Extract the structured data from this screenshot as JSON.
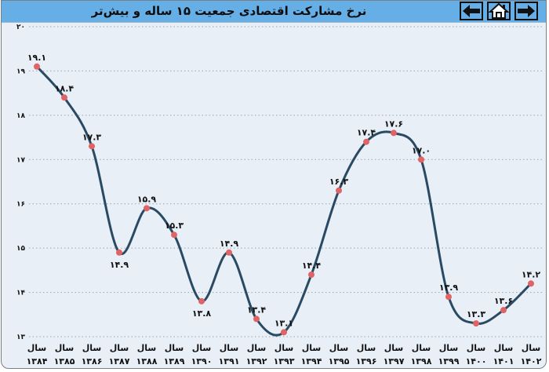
{
  "header": {
    "title": "نرخ مشارکت اقتصادی جمعیت ۱۵ ساله و بیش‌تر",
    "nav": {
      "back_icon": "arrow-left-icon",
      "home_icon": "home-icon",
      "forward_icon": "arrow-right-icon"
    }
  },
  "colors": {
    "title_bar": "#66aee6",
    "plot_bg": "#e8eff7",
    "line": "#2a4a63",
    "marker": "#e06466"
  },
  "chart_data": {
    "type": "line",
    "title": "نرخ مشارکت اقتصادی جمعیت ۱۵ ساله و بیش‌تر",
    "xlabel": "",
    "ylabel": "",
    "ylim": [
      13,
      20
    ],
    "yticks": [
      20,
      19,
      18,
      17,
      16,
      15,
      14,
      13
    ],
    "ytick_labels": [
      "۲۰",
      "۱۹",
      "۱۸",
      "۱۷",
      "۱۶",
      "۱۵",
      "۱۴",
      "۱۳"
    ],
    "grid": "horizontal-dotted",
    "legend": "none",
    "categories": [
      "سال ۱۳۸۴",
      "سال ۱۳۸۵",
      "سال ۱۳۸۶",
      "سال ۱۳۸۷",
      "سال ۱۳۸۸",
      "سال ۱۳۸۹",
      "سال ۱۳۹۰",
      "سال ۱۳۹۱",
      "سال ۱۳۹۲",
      "سال ۱۳۹۳",
      "سال ۱۳۹۴",
      "سال ۱۳۹۵",
      "سال ۱۳۹۶",
      "سال ۱۳۹۷",
      "سال ۱۳۹۸",
      "سال ۱۳۹۹",
      "سال ۱۴۰۰",
      "سال ۱۴۰۱",
      "سال ۱۴۰۲"
    ],
    "x_line1": [
      "سال",
      "سال",
      "سال",
      "سال",
      "سال",
      "سال",
      "سال",
      "سال",
      "سال",
      "سال",
      "سال",
      "سال",
      "سال",
      "سال",
      "سال",
      "سال",
      "سال",
      "سال",
      "سال"
    ],
    "x_line2": [
      "۱۳۸۴",
      "۱۳۸۵",
      "۱۳۸۶",
      "۱۳۸۷",
      "۱۳۸۸",
      "۱۳۸۹",
      "۱۳۹۰",
      "۱۳۹۱",
      "۱۳۹۲",
      "۱۳۹۳",
      "۱۳۹۴",
      "۱۳۹۵",
      "۱۳۹۶",
      "۱۳۹۷",
      "۱۳۹۸",
      "۱۳۹۹",
      "۱۴۰۰",
      "۱۴۰۱",
      "۱۴۰۲"
    ],
    "series": [
      {
        "name": "نرخ مشارکت اقتصادی",
        "values": [
          19.1,
          18.4,
          17.3,
          14.9,
          15.9,
          15.3,
          13.8,
          14.9,
          13.4,
          13.1,
          14.4,
          16.3,
          17.4,
          17.6,
          17.0,
          13.9,
          13.3,
          13.6,
          14.2
        ],
        "value_labels": [
          "۱۹.۱",
          "۱۸.۴",
          "۱۷.۳",
          "۱۴.۹",
          "۱۵.۹",
          "۱۵.۳",
          "۱۳.۸",
          "۱۴.۹",
          "۱۳.۴",
          "۱۳.۱",
          "۱۴.۴",
          "۱۶.۳",
          "۱۷.۴",
          "۱۷.۶",
          "۱۷.۰",
          "۱۳.۹",
          "۱۳.۳",
          "۱۳.۶",
          "۱۴.۲"
        ],
        "label_position": [
          "above",
          "above",
          "above",
          "below",
          "above",
          "above",
          "below",
          "above",
          "above",
          "above",
          "above",
          "above",
          "above",
          "above",
          "above",
          "above",
          "above",
          "above",
          "above"
        ]
      }
    ]
  }
}
